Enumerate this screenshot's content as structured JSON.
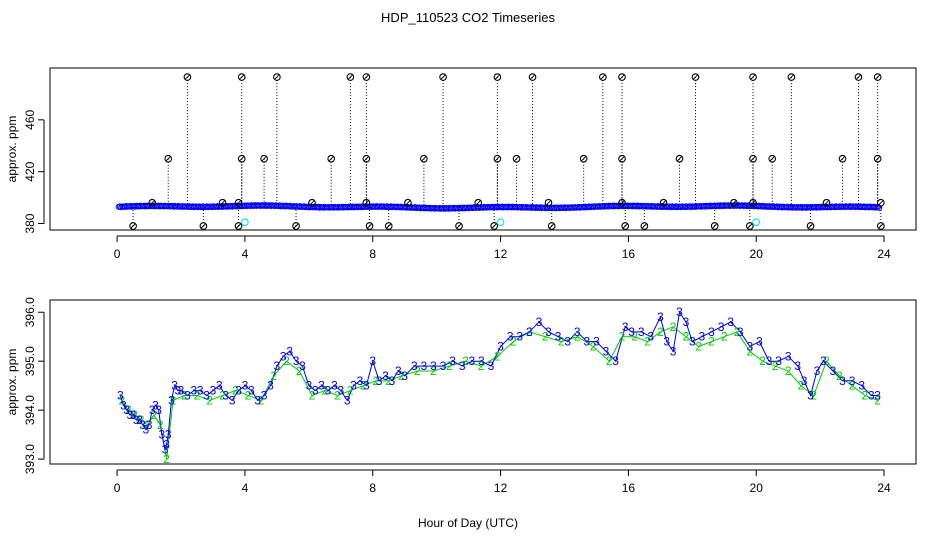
{
  "chart_data": [
    {
      "type": "scatter",
      "title": "HDP_110523  CO2 Timeseries",
      "xlabel": "",
      "ylabel": "approx. ppm",
      "xlim": [
        -2.1,
        25.0
      ],
      "ylim": [
        375,
        500
      ],
      "xticks": [
        "0",
        "4",
        "8",
        "12",
        "16",
        "20",
        "24"
      ],
      "yticks": [
        "380",
        "420",
        "460"
      ],
      "baseline_color": "#0000ee",
      "outlier_color": "#000000",
      "flag_color": "#00e5e5",
      "baseline": {
        "x_start": 0.05,
        "x_end": 23.85,
        "x_step": 0.04,
        "low": 391.4,
        "high": 394.2
      },
      "outliers_high": [
        {
          "x": 2.2,
          "y": 493
        },
        {
          "x": 3.9,
          "y": 493
        },
        {
          "x": 5.0,
          "y": 493
        },
        {
          "x": 7.3,
          "y": 493
        },
        {
          "x": 7.8,
          "y": 493
        },
        {
          "x": 10.2,
          "y": 493
        },
        {
          "x": 11.9,
          "y": 493
        },
        {
          "x": 13.0,
          "y": 493
        },
        {
          "x": 15.2,
          "y": 493
        },
        {
          "x": 15.8,
          "y": 493
        },
        {
          "x": 18.1,
          "y": 493
        },
        {
          "x": 19.9,
          "y": 493
        },
        {
          "x": 21.1,
          "y": 493
        },
        {
          "x": 23.2,
          "y": 493
        },
        {
          "x": 23.8,
          "y": 493
        }
      ],
      "outliers_mid": [
        {
          "x": 1.6,
          "y": 430
        },
        {
          "x": 3.9,
          "y": 430
        },
        {
          "x": 4.6,
          "y": 430
        },
        {
          "x": 6.7,
          "y": 430
        },
        {
          "x": 7.8,
          "y": 430
        },
        {
          "x": 9.6,
          "y": 430
        },
        {
          "x": 11.9,
          "y": 430
        },
        {
          "x": 12.5,
          "y": 430
        },
        {
          "x": 14.6,
          "y": 430
        },
        {
          "x": 15.8,
          "y": 430
        },
        {
          "x": 17.6,
          "y": 430
        },
        {
          "x": 19.9,
          "y": 430
        },
        {
          "x": 20.5,
          "y": 430
        },
        {
          "x": 22.7,
          "y": 430
        },
        {
          "x": 23.8,
          "y": 430
        }
      ],
      "outliers_low": [
        {
          "x": 0.5,
          "y": 378
        },
        {
          "x": 2.7,
          "y": 378
        },
        {
          "x": 3.8,
          "y": 378
        },
        {
          "x": 5.6,
          "y": 378
        },
        {
          "x": 7.9,
          "y": 378
        },
        {
          "x": 8.5,
          "y": 378
        },
        {
          "x": 10.7,
          "y": 378
        },
        {
          "x": 11.8,
          "y": 378
        },
        {
          "x": 13.6,
          "y": 378
        },
        {
          "x": 15.9,
          "y": 378
        },
        {
          "x": 16.5,
          "y": 378
        },
        {
          "x": 18.7,
          "y": 378
        },
        {
          "x": 19.8,
          "y": 378
        },
        {
          "x": 21.7,
          "y": 378
        },
        {
          "x": 23.9,
          "y": 378
        }
      ],
      "outliers_baseline": [
        {
          "x": 1.1,
          "y": 396
        },
        {
          "x": 3.3,
          "y": 396
        },
        {
          "x": 3.8,
          "y": 396
        },
        {
          "x": 6.1,
          "y": 396
        },
        {
          "x": 7.8,
          "y": 396
        },
        {
          "x": 9.1,
          "y": 396
        },
        {
          "x": 11.3,
          "y": 396
        },
        {
          "x": 13.5,
          "y": 396
        },
        {
          "x": 15.8,
          "y": 396
        },
        {
          "x": 17.1,
          "y": 396
        },
        {
          "x": 19.3,
          "y": 396
        },
        {
          "x": 19.9,
          "y": 396
        },
        {
          "x": 22.2,
          "y": 396
        },
        {
          "x": 23.9,
          "y": 396
        }
      ],
      "flags": [
        {
          "x": 4.0,
          "y": 381
        },
        {
          "x": 12.0,
          "y": 381
        },
        {
          "x": 20.0,
          "y": 381
        }
      ]
    },
    {
      "type": "line",
      "title": "",
      "xlabel": "Hour of Day (UTC)",
      "ylabel": "approx. ppm",
      "xlim": [
        -2.1,
        25.0
      ],
      "ylim": [
        392.9,
        396.25
      ],
      "xticks": [
        "0",
        "4",
        "8",
        "12",
        "16",
        "20",
        "24"
      ],
      "yticks": [
        "393.0",
        "394.0",
        "395.0",
        "396.0"
      ],
      "series": [
        {
          "name": "3",
          "marker": "3",
          "color": "#0000ee",
          "x": [
            0.1,
            0.2,
            0.3,
            0.4,
            0.5,
            0.6,
            0.7,
            0.8,
            0.9,
            1.0,
            1.1,
            1.2,
            1.3,
            1.4,
            1.5,
            1.55,
            1.6,
            1.7,
            1.8,
            1.9,
            2.0,
            2.2,
            2.4,
            2.6,
            2.8,
            3.0,
            3.2,
            3.4,
            3.6,
            3.8,
            4.0,
            4.2,
            4.4,
            4.6,
            4.8,
            5.0,
            5.2,
            5.4,
            5.6,
            5.8,
            6.0,
            6.2,
            6.4,
            6.6,
            6.8,
            7.0,
            7.2,
            7.4,
            7.6,
            7.8,
            8.0,
            8.2,
            8.4,
            8.6,
            8.8,
            9.0,
            9.3,
            9.6,
            9.9,
            10.2,
            10.5,
            10.8,
            11.1,
            11.4,
            11.7,
            12.0,
            12.3,
            12.6,
            12.9,
            13.2,
            13.5,
            13.8,
            14.1,
            14.4,
            14.7,
            15.0,
            15.3,
            15.6,
            15.9,
            16.1,
            16.4,
            16.7,
            17.0,
            17.2,
            17.4,
            17.6,
            17.8,
            18.0,
            18.3,
            18.6,
            18.9,
            19.2,
            19.5,
            19.8,
            20.1,
            20.4,
            20.7,
            21.0,
            21.3,
            21.5,
            21.7,
            21.9,
            22.1,
            22.4,
            22.7,
            23.0,
            23.3,
            23.6,
            23.8
          ],
          "y": [
            394.3,
            394.1,
            394.0,
            393.9,
            393.9,
            393.8,
            393.8,
            393.7,
            393.6,
            393.7,
            394.0,
            394.1,
            394.0,
            393.5,
            393.2,
            393.3,
            393.5,
            394.2,
            394.5,
            394.4,
            394.4,
            394.3,
            394.4,
            394.4,
            394.3,
            394.4,
            394.5,
            394.3,
            394.2,
            394.4,
            394.5,
            394.4,
            394.2,
            394.3,
            394.5,
            394.9,
            395.1,
            395.2,
            395.0,
            394.9,
            394.5,
            394.4,
            394.5,
            394.4,
            394.5,
            394.4,
            394.2,
            394.5,
            394.6,
            394.5,
            395.0,
            394.6,
            394.7,
            394.6,
            394.8,
            394.7,
            394.9,
            394.9,
            394.9,
            394.9,
            395.0,
            394.9,
            395.0,
            395.0,
            394.9,
            395.3,
            395.5,
            395.5,
            395.6,
            395.8,
            395.6,
            395.5,
            395.4,
            395.6,
            395.4,
            395.4,
            395.2,
            395.0,
            395.7,
            395.6,
            395.6,
            395.5,
            395.9,
            395.4,
            395.2,
            396.0,
            395.8,
            395.4,
            395.5,
            395.6,
            395.7,
            395.8,
            395.6,
            395.3,
            395.4,
            395.0,
            395.0,
            395.1,
            394.9,
            394.6,
            394.3,
            394.8,
            395.0,
            394.8,
            394.6,
            394.6,
            394.5,
            394.3,
            394.3
          ]
        },
        {
          "name": "2",
          "marker": "2",
          "color": "#00cc00",
          "x": [
            0.15,
            0.35,
            0.55,
            0.75,
            0.95,
            1.15,
            1.35,
            1.55,
            1.75,
            2.1,
            2.5,
            2.9,
            3.3,
            3.7,
            4.1,
            4.5,
            4.9,
            5.3,
            5.7,
            6.1,
            6.5,
            6.9,
            7.3,
            7.7,
            8.1,
            8.5,
            8.9,
            9.4,
            9.9,
            10.4,
            10.9,
            11.4,
            11.9,
            12.4,
            12.9,
            13.4,
            13.9,
            14.4,
            14.9,
            15.4,
            15.8,
            16.2,
            16.6,
            17.0,
            17.4,
            17.8,
            18.2,
            18.6,
            19.0,
            19.4,
            19.8,
            20.2,
            20.6,
            21.0,
            21.4,
            21.8,
            22.2,
            22.6,
            23.0,
            23.4,
            23.8
          ],
          "y": [
            394.2,
            394.0,
            393.9,
            393.8,
            393.7,
            393.9,
            393.7,
            393.0,
            394.2,
            394.3,
            394.3,
            394.2,
            394.3,
            394.4,
            394.3,
            394.2,
            394.7,
            395.0,
            394.8,
            394.3,
            394.4,
            394.3,
            394.4,
            394.5,
            394.6,
            394.6,
            394.7,
            394.8,
            394.8,
            394.9,
            395.0,
            394.9,
            395.1,
            395.4,
            395.6,
            395.5,
            395.4,
            395.5,
            395.3,
            395.0,
            395.5,
            395.5,
            395.4,
            395.6,
            395.7,
            395.5,
            395.3,
            395.4,
            395.5,
            395.6,
            395.2,
            395.0,
            394.9,
            394.8,
            394.5,
            394.3,
            395.0,
            394.7,
            394.5,
            394.3,
            394.2
          ]
        }
      ]
    }
  ]
}
